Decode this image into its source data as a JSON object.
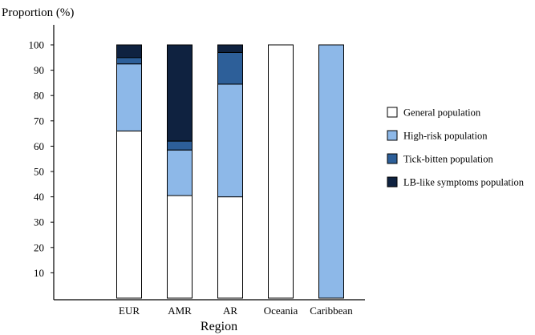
{
  "chart_data": {
    "type": "bar",
    "stacked": true,
    "ylabel": "Proportion (%)",
    "xlabel": "Region",
    "ylim": [
      0,
      100
    ],
    "yticks": [
      10,
      20,
      30,
      40,
      50,
      60,
      70,
      80,
      90,
      100
    ],
    "categories": [
      "EUR",
      "AMR",
      "AR",
      "Oceania",
      "Caribbean"
    ],
    "series": [
      {
        "name": "General population",
        "color": "#ffffff",
        "values": [
          66,
          40.5,
          40,
          100,
          0
        ]
      },
      {
        "name": "High-risk population",
        "color": "#8db8e8",
        "values": [
          26.5,
          18,
          44.5,
          0,
          100
        ]
      },
      {
        "name": "Tick-bitten population",
        "color": "#2d5f99",
        "values": [
          2.5,
          3.5,
          12.5,
          0,
          0
        ]
      },
      {
        "name": "LB-like symptoms population",
        "color": "#0f2240",
        "values": [
          5,
          38,
          3,
          0,
          0
        ]
      }
    ],
    "legend_position": "right",
    "grid": false
  }
}
